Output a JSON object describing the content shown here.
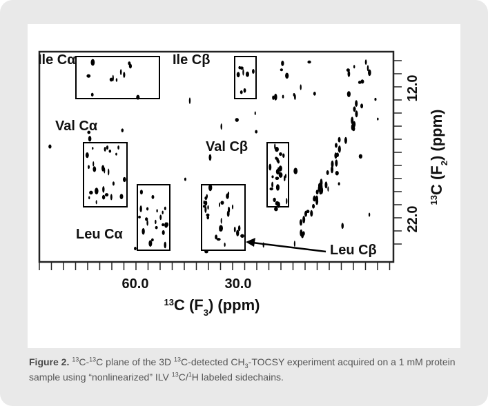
{
  "figure": {
    "labels": [
      "Ile Cα",
      "Ile Cβ",
      "Val Cα",
      "Val Cβ",
      "Leu Cα",
      "Leu Cβ"
    ],
    "x_axis": {
      "ticks": [
        "60.0",
        "30.0"
      ],
      "title": [
        {
          "text": "13",
          "style": "sup"
        },
        {
          "text": "C (F"
        },
        {
          "text": "3",
          "style": "sub"
        },
        {
          "text": ") (ppm)"
        }
      ]
    },
    "y_axis": {
      "ticks": [
        "12.0",
        "22.0"
      ],
      "title": [
        {
          "text": "13",
          "style": "sup"
        },
        {
          "text": "C (F"
        },
        {
          "text": "2",
          "style": "sub"
        },
        {
          "text": ") (ppm)"
        }
      ]
    }
  },
  "caption": {
    "label": "Figure 2.",
    "runs": [
      {
        "text": "13",
        "style": "sup"
      },
      {
        "text": "C-"
      },
      {
        "text": "13",
        "style": "sup"
      },
      {
        "text": "C plane of the 3D "
      },
      {
        "text": "13",
        "style": "sup"
      },
      {
        "text": "C-detected CH"
      },
      {
        "text": "3",
        "style": "sub"
      },
      {
        "text": "-TOCSY experiment acquired on a 1 mM protein sample using “nonlinearized” ILV "
      },
      {
        "text": "13",
        "style": "sup"
      },
      {
        "text": "C/"
      },
      {
        "text": "1",
        "style": "sup"
      },
      {
        "text": "H labeled sidechains."
      }
    ]
  }
}
